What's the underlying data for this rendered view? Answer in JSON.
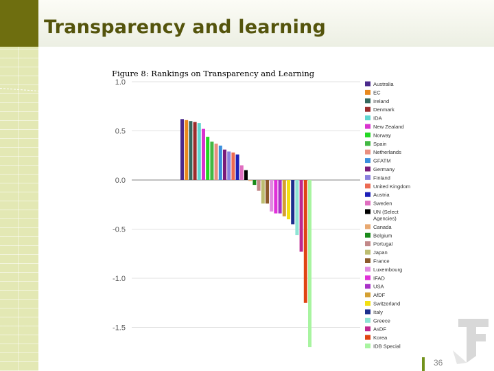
{
  "slide": {
    "title": "Transparency and learning",
    "page_number": "36"
  },
  "chart_data": {
    "type": "bar",
    "title": "Figure 8: Rankings on Transparency and Learning",
    "xlabel": "",
    "ylabel": "",
    "ylim": [
      -1.7,
      1.0
    ],
    "yticks": [
      1.0,
      0.5,
      0.0,
      -0.5,
      -1.0,
      -1.5
    ],
    "ytick_labels": [
      "1.0",
      "0.5",
      "0.0",
      "-0.5",
      "-1.0",
      "-1.5"
    ],
    "grid": true,
    "legend_position": "right",
    "categories": [
      "Australia",
      "EC",
      "Ireland",
      "Denmark",
      "IDA",
      "New Zealand",
      "Norway",
      "Spain",
      "Netherlands",
      "GFATM",
      "Germany",
      "Finland",
      "United Kingdom",
      "Austria",
      "Sweden",
      "UN (Select Agencies)",
      "Canada",
      "Belgium",
      "Portugal",
      "Japan",
      "France",
      "Luxembourg",
      "IFAD",
      "USA",
      "AfDF",
      "Switzerland",
      "Italy",
      "Greece",
      "AsDF",
      "Korea",
      "IDB Special"
    ],
    "legend_lines": [
      [
        "Australia"
      ],
      [
        "EC"
      ],
      [
        "Ireland"
      ],
      [
        "Denmark"
      ],
      [
        "IDA"
      ],
      [
        "New Zealand"
      ],
      [
        "Norway"
      ],
      [
        "Spain"
      ],
      [
        "Netherlands"
      ],
      [
        "GFATM"
      ],
      [
        "Germany"
      ],
      [
        "Finland"
      ],
      [
        "United Kingdom"
      ],
      [
        "Austria"
      ],
      [
        "Sweden"
      ],
      [
        "UN (Select",
        "Agencies)"
      ],
      [
        "Canada"
      ],
      [
        "Belgium"
      ],
      [
        "Portugal"
      ],
      [
        "Japan"
      ],
      [
        "France"
      ],
      [
        "Luxembourg"
      ],
      [
        "IFAD"
      ],
      [
        "USA"
      ],
      [
        "AfDF"
      ],
      [
        "Switzerland"
      ],
      [
        "Italy"
      ],
      [
        "Greece"
      ],
      [
        "AsDF"
      ],
      [
        "Korea"
      ],
      [
        "IDB Special"
      ]
    ],
    "values": [
      0.62,
      0.61,
      0.6,
      0.59,
      0.58,
      0.52,
      0.44,
      0.39,
      0.37,
      0.35,
      0.31,
      0.29,
      0.28,
      0.26,
      0.15,
      0.1,
      -0.01,
      -0.05,
      -0.11,
      -0.24,
      -0.24,
      -0.32,
      -0.34,
      -0.34,
      -0.37,
      -0.4,
      -0.45,
      -0.56,
      -0.73,
      -1.25,
      -1.7
    ],
    "colors": [
      "#4b2a8c",
      "#e8891e",
      "#35695e",
      "#9b2c2c",
      "#5fd6d0",
      "#d933cf",
      "#23d823",
      "#43b843",
      "#e88f80",
      "#3a8fde",
      "#7a1a7a",
      "#8a80de",
      "#ec6a52",
      "#1d20b8",
      "#e06ec0",
      "#000000",
      "#e8a870",
      "#1a8a1a",
      "#c28888",
      "#bdbd70",
      "#8c5a2a",
      "#e08ae0",
      "#e030d8",
      "#a832c8",
      "#d4a032",
      "#f2e012",
      "#1c2f8e",
      "#8ee4d4",
      "#c02890",
      "#e04412",
      "#a8f4a0"
    ]
  }
}
